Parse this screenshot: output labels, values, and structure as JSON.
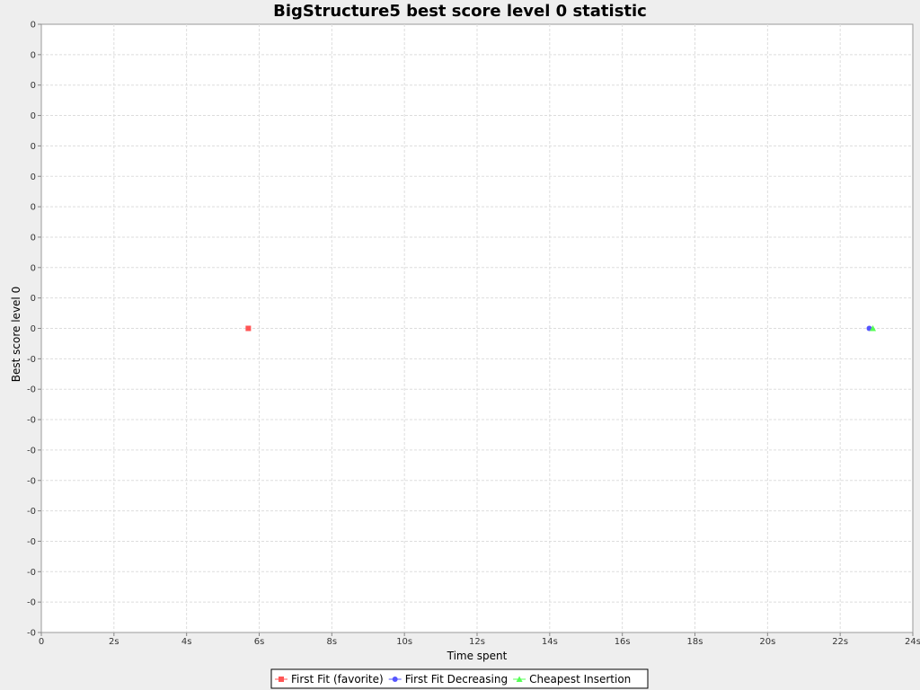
{
  "chart_data": {
    "type": "scatter",
    "title": "BigStructure5 best score level 0 statistic",
    "xlabel": "Time spent",
    "ylabel": "Best score level 0",
    "xlim": [
      0,
      24
    ],
    "x_tick_labels": [
      "0",
      "2s",
      "4s",
      "6s",
      "8s",
      "10s",
      "12s",
      "14s",
      "16s",
      "18s",
      "20s",
      "22s",
      "24s"
    ],
    "y_tick_labels": [
      "0",
      "0",
      "0",
      "0",
      "0",
      "0",
      "0",
      "0",
      "0",
      "0",
      "0",
      "-0",
      "-0",
      "-0",
      "-0",
      "-0",
      "-0",
      "-0",
      "-0",
      "-0",
      "-0"
    ],
    "grid": true,
    "legend_position": "bottom",
    "series": [
      {
        "name": "First Fit (favorite)",
        "color": "#ff5555",
        "marker": "square",
        "points": [
          {
            "x": 5.7,
            "y": 0
          }
        ]
      },
      {
        "name": "First Fit Decreasing",
        "color": "#5555ff",
        "marker": "circle",
        "points": [
          {
            "x": 22.8,
            "y": 0
          }
        ]
      },
      {
        "name": "Cheapest Insertion",
        "color": "#55ff55",
        "marker": "triangle",
        "points": [
          {
            "x": 22.9,
            "y": 0
          }
        ]
      }
    ]
  }
}
